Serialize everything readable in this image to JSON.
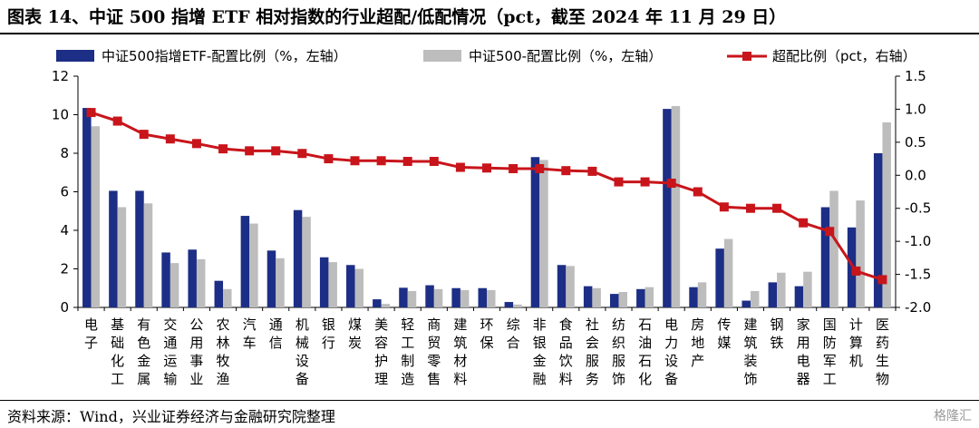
{
  "title": "图表 14、中证 500 指增 ETF 相对指数的行业超配/低配情况（pct，截至 2024 年 11 月 29 日）",
  "source": "资料来源：Wind，兴业证券经济与金融研究院整理",
  "watermark": "格隆汇",
  "colors": {
    "etf": "#1c2e86",
    "index": "#bdbdbd",
    "over": "#c8151b"
  },
  "chart_data": {
    "type": "bar+line",
    "categories": [
      "电子",
      "基础化工",
      "有色金属",
      "交通运输",
      "公用事业",
      "农林牧渔",
      "汽车",
      "通信",
      "机械设备",
      "银行",
      "煤炭",
      "美容护理",
      "轻工制造",
      "商贸零售",
      "建筑材料",
      "环保",
      "综合",
      "非银金融",
      "食品饮料",
      "社会服务",
      "纺织服饰",
      "石油石化",
      "电力设备",
      "房地产",
      "传媒",
      "建筑装饰",
      "钢铁",
      "家用电器",
      "国防军工",
      "计算机",
      "医药生物"
    ],
    "series": [
      {
        "name": "中证500指增ETF-配置比例（%，左轴）",
        "type": "bar",
        "axis": "left",
        "values": [
          10.35,
          6.05,
          6.05,
          2.85,
          3.0,
          1.38,
          4.75,
          2.95,
          5.05,
          2.6,
          2.2,
          0.42,
          1.02,
          1.15,
          1.0,
          1.0,
          0.28,
          7.8,
          2.2,
          1.1,
          0.7,
          0.95,
          10.3,
          1.05,
          3.05,
          0.35,
          1.3,
          1.1,
          5.2,
          4.15,
          8.0
        ]
      },
      {
        "name": "中证500-配置比例（%，左轴）",
        "type": "bar",
        "axis": "left",
        "values": [
          9.4,
          5.2,
          5.4,
          2.3,
          2.5,
          0.95,
          4.35,
          2.55,
          4.7,
          2.35,
          2.0,
          0.18,
          0.85,
          0.95,
          0.9,
          0.9,
          0.15,
          7.65,
          2.15,
          1.0,
          0.8,
          1.05,
          10.45,
          1.3,
          3.55,
          0.85,
          1.8,
          1.85,
          6.05,
          5.55,
          9.6
        ]
      },
      {
        "name": "超配比例（pct，右轴）",
        "type": "line",
        "axis": "right",
        "values": [
          0.95,
          0.82,
          0.62,
          0.55,
          0.48,
          0.4,
          0.37,
          0.37,
          0.33,
          0.25,
          0.22,
          0.22,
          0.21,
          0.21,
          0.12,
          0.11,
          0.1,
          0.1,
          0.07,
          0.06,
          -0.1,
          -0.1,
          -0.12,
          -0.25,
          -0.48,
          -0.5,
          -0.5,
          -0.72,
          -0.85,
          -1.45,
          -1.58
        ]
      }
    ],
    "y_left": {
      "min": 0,
      "max": 12,
      "ticks": [
        0,
        2,
        4,
        6,
        8,
        10,
        12
      ]
    },
    "y_right": {
      "min": -2.0,
      "max": 1.5,
      "ticks": [
        "-2.0",
        "-1.5",
        "-1.0",
        "-0.5",
        "0.0",
        "0.5",
        "1.0",
        "1.5"
      ]
    },
    "legend": "top",
    "grid": false
  }
}
